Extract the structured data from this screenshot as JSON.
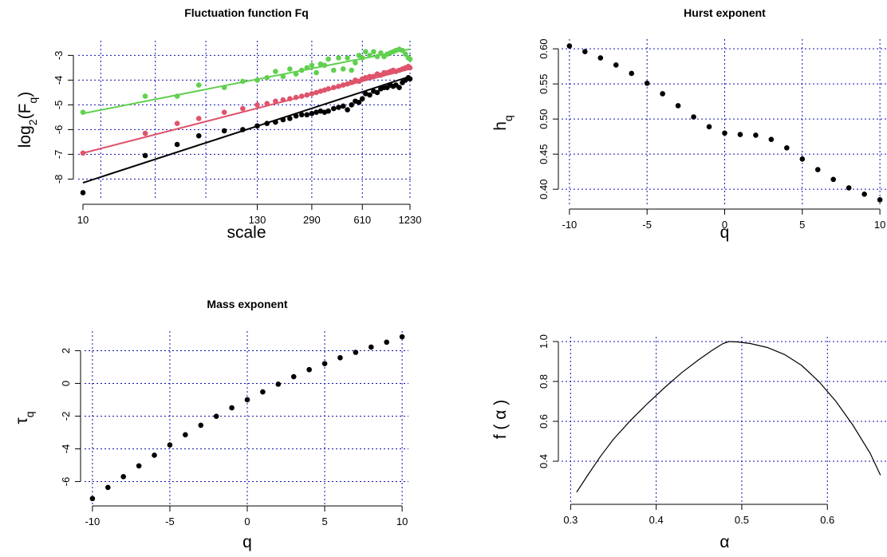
{
  "chart_data": [
    {
      "id": "fq",
      "type": "scatter",
      "title": "Fluctuation function Fq",
      "xlabel": "scale",
      "ylabel": "log2(Fq)",
      "ylabel_parts": {
        "base": "log",
        "base_sub": "2",
        "open": "(F",
        "sub": "q",
        "close": ")"
      },
      "x_scale": "log",
      "xlim": [
        10,
        1230
      ],
      "ylim": [
        -8.6,
        -2.6
      ],
      "x_ticks": [
        10,
        130,
        290,
        610,
        1230
      ],
      "x_tick_labels": [
        "10",
        "130",
        "290",
        "610",
        "1230"
      ],
      "y_ticks": [
        -8,
        -7,
        -6,
        -5,
        -4,
        -3
      ],
      "y_tick_labels": [
        "-8",
        "-7",
        "-6",
        "-5",
        "-4",
        "-3"
      ],
      "x_grid": [
        13,
        29,
        61,
        130,
        290,
        610,
        1230
      ],
      "y_grid": [
        -8,
        -7,
        -6,
        -5,
        -4,
        -3
      ],
      "grid": true,
      "series": [
        {
          "color": "#000000",
          "points": [
            [
              10,
              -8.55
            ],
            [
              25,
              -7.05
            ],
            [
              40,
              -6.6
            ],
            [
              55,
              -6.25
            ],
            [
              80,
              -6.05
            ],
            [
              105,
              -6.0
            ],
            [
              130,
              -5.85
            ],
            [
              150,
              -5.75
            ],
            [
              170,
              -5.7
            ],
            [
              190,
              -5.6
            ],
            [
              210,
              -5.55
            ],
            [
              230,
              -5.45
            ],
            [
              250,
              -5.4
            ],
            [
              270,
              -5.4
            ],
            [
              290,
              -5.35
            ],
            [
              310,
              -5.3
            ],
            [
              330,
              -5.25
            ],
            [
              350,
              -5.3
            ],
            [
              370,
              -5.25
            ],
            [
              400,
              -5.15
            ],
            [
              430,
              -5.1
            ],
            [
              460,
              -5.05
            ],
            [
              490,
              -5.2
            ],
            [
              520,
              -5.0
            ],
            [
              550,
              -4.85
            ],
            [
              580,
              -4.9
            ],
            [
              610,
              -4.75
            ],
            [
              640,
              -4.55
            ],
            [
              680,
              -4.6
            ],
            [
              720,
              -4.45
            ],
            [
              760,
              -4.5
            ],
            [
              800,
              -4.35
            ],
            [
              840,
              -4.3
            ],
            [
              880,
              -4.3
            ],
            [
              920,
              -4.2
            ],
            [
              960,
              -4.25
            ],
            [
              1000,
              -4.2
            ],
            [
              1050,
              -4.3
            ],
            [
              1100,
              -4.1
            ],
            [
              1150,
              -4.0
            ],
            [
              1200,
              -3.9
            ],
            [
              1230,
              -3.95
            ]
          ],
          "fit": [
            [
              10,
              -8.15
            ],
            [
              1230,
              -3.85
            ]
          ]
        },
        {
          "color": "#df536b",
          "points": [
            [
              10,
              -6.95
            ],
            [
              25,
              -6.15
            ],
            [
              40,
              -5.75
            ],
            [
              55,
              -5.55
            ],
            [
              80,
              -5.3
            ],
            [
              105,
              -5.15
            ],
            [
              130,
              -5.0
            ],
            [
              150,
              -4.95
            ],
            [
              170,
              -4.85
            ],
            [
              190,
              -4.8
            ],
            [
              210,
              -4.75
            ],
            [
              230,
              -4.7
            ],
            [
              250,
              -4.65
            ],
            [
              270,
              -4.6
            ],
            [
              290,
              -4.55
            ],
            [
              310,
              -4.5
            ],
            [
              330,
              -4.45
            ],
            [
              350,
              -4.4
            ],
            [
              370,
              -4.35
            ],
            [
              400,
              -4.3
            ],
            [
              430,
              -4.25
            ],
            [
              460,
              -4.2
            ],
            [
              490,
              -4.15
            ],
            [
              520,
              -4.1
            ],
            [
              550,
              -4.0
            ],
            [
              580,
              -4.05
            ],
            [
              610,
              -3.95
            ],
            [
              640,
              -3.9
            ],
            [
              680,
              -3.85
            ],
            [
              720,
              -3.85
            ],
            [
              760,
              -3.75
            ],
            [
              800,
              -3.8
            ],
            [
              840,
              -3.7
            ],
            [
              880,
              -3.7
            ],
            [
              920,
              -3.65
            ],
            [
              960,
              -3.6
            ],
            [
              1000,
              -3.65
            ],
            [
              1050,
              -3.6
            ],
            [
              1100,
              -3.55
            ],
            [
              1150,
              -3.5
            ],
            [
              1200,
              -3.45
            ],
            [
              1230,
              -3.5
            ]
          ],
          "fit": [
            [
              10,
              -6.95
            ],
            [
              1230,
              -3.55
            ]
          ]
        },
        {
          "color": "#61d04f",
          "points": [
            [
              10,
              -5.3
            ],
            [
              25,
              -4.65
            ],
            [
              40,
              -4.65
            ],
            [
              55,
              -4.2
            ],
            [
              80,
              -4.3
            ],
            [
              105,
              -4.05
            ],
            [
              130,
              -4.0
            ],
            [
              150,
              -3.9
            ],
            [
              170,
              -3.65
            ],
            [
              190,
              -3.85
            ],
            [
              210,
              -3.55
            ],
            [
              230,
              -3.75
            ],
            [
              250,
              -3.6
            ],
            [
              270,
              -3.5
            ],
            [
              290,
              -3.4
            ],
            [
              310,
              -3.7
            ],
            [
              330,
              -3.35
            ],
            [
              350,
              -3.4
            ],
            [
              370,
              -3.15
            ],
            [
              400,
              -3.6
            ],
            [
              430,
              -3.1
            ],
            [
              460,
              -3.55
            ],
            [
              490,
              -3.1
            ],
            [
              520,
              -3.6
            ],
            [
              550,
              -3.3
            ],
            [
              580,
              -3.0
            ],
            [
              610,
              -3.1
            ],
            [
              640,
              -2.85
            ],
            [
              680,
              -3.0
            ],
            [
              720,
              -2.85
            ],
            [
              760,
              -3.05
            ],
            [
              800,
              -2.9
            ],
            [
              840,
              -3.05
            ],
            [
              880,
              -2.95
            ],
            [
              920,
              -2.9
            ],
            [
              960,
              -2.85
            ],
            [
              1000,
              -2.8
            ],
            [
              1050,
              -2.75
            ],
            [
              1100,
              -2.8
            ],
            [
              1150,
              -2.95
            ],
            [
              1200,
              -3.1
            ],
            [
              1230,
              -3.15
            ]
          ],
          "fit": [
            [
              10,
              -5.35
            ],
            [
              1230,
              -2.75
            ]
          ]
        }
      ]
    },
    {
      "id": "hurst",
      "type": "scatter",
      "title": "Hurst exponent",
      "xlabel": "q",
      "ylabel": "hq",
      "ylabel_parts": {
        "base": "h",
        "sub": "q"
      },
      "xlim": [
        -10.2,
        10.2
      ],
      "ylim": [
        0.382,
        0.607
      ],
      "x_ticks": [
        -10,
        -5,
        0,
        5,
        10
      ],
      "x_tick_labels": [
        "-10",
        "-5",
        "0",
        "5",
        "10"
      ],
      "y_ticks": [
        0.4,
        0.45,
        0.5,
        0.55,
        0.6
      ],
      "y_tick_labels": [
        "0.40",
        "0.45",
        "0.50",
        "0.55",
        "0.60"
      ],
      "x_grid": [
        -10,
        -5,
        0,
        5,
        10
      ],
      "y_grid": [
        0.4,
        0.45,
        0.5,
        0.55,
        0.6
      ],
      "grid": true,
      "series": [
        {
          "color": "#000000",
          "points": [
            [
              -10,
              0.604
            ],
            [
              -9,
              0.596
            ],
            [
              -8,
              0.587
            ],
            [
              -7,
              0.577
            ],
            [
              -6,
              0.565
            ],
            [
              -5,
              0.551
            ],
            [
              -4,
              0.536
            ],
            [
              -3,
              0.519
            ],
            [
              -2,
              0.503
            ],
            [
              -1,
              0.489
            ],
            [
              0,
              0.48
            ],
            [
              1,
              0.478
            ],
            [
              2,
              0.477
            ],
            [
              3,
              0.471
            ],
            [
              4,
              0.459
            ],
            [
              5,
              0.443
            ],
            [
              6,
              0.428
            ],
            [
              7,
              0.414
            ],
            [
              8,
              0.402
            ],
            [
              9,
              0.393
            ],
            [
              10,
              0.385
            ]
          ]
        }
      ]
    },
    {
      "id": "mass",
      "type": "scatter",
      "title": "Mass exponent",
      "xlabel": "q",
      "ylabel": "τq",
      "ylabel_parts": {
        "base": "τ",
        "sub": "q"
      },
      "xlim": [
        -10.2,
        10.2
      ],
      "ylim": [
        -7.1,
        2.9
      ],
      "x_ticks": [
        -10,
        -5,
        0,
        5,
        10
      ],
      "x_tick_labels": [
        "-10",
        "-5",
        "0",
        "5",
        "10"
      ],
      "y_ticks": [
        -6,
        -4,
        -2,
        0,
        2
      ],
      "y_tick_labels": [
        "-6",
        "-4",
        "-2",
        "0",
        "2"
      ],
      "x_grid": [
        -10,
        -5,
        0,
        5,
        10
      ],
      "y_grid": [
        -6,
        -4,
        -2,
        0,
        2
      ],
      "grid": true,
      "series": [
        {
          "color": "#000000",
          "points": [
            [
              -10,
              -7.04
            ],
            [
              -9,
              -6.36
            ],
            [
              -8,
              -5.7
            ],
            [
              -7,
              -5.04
            ],
            [
              -6,
              -4.39
            ],
            [
              -5,
              -3.76
            ],
            [
              -4,
              -3.14
            ],
            [
              -3,
              -2.56
            ],
            [
              -2,
              -2.01
            ],
            [
              -1,
              -1.49
            ],
            [
              0,
              -1.0
            ],
            [
              1,
              -0.52
            ],
            [
              2,
              -0.05
            ],
            [
              3,
              0.41
            ],
            [
              4,
              0.84
            ],
            [
              5,
              1.21
            ],
            [
              6,
              1.57
            ],
            [
              7,
              1.9
            ],
            [
              8,
              2.22
            ],
            [
              9,
              2.52
            ],
            [
              10,
              2.85
            ]
          ]
        }
      ]
    },
    {
      "id": "spectrum",
      "type": "line",
      "title": "",
      "xlabel": "α",
      "ylabel": "f ( α )",
      "xlim": [
        0.295,
        0.665
      ],
      "ylim": [
        0.22,
        1.0
      ],
      "x_ticks": [
        0.3,
        0.4,
        0.5,
        0.6
      ],
      "x_tick_labels": [
        "0.3",
        "0.4",
        "0.5",
        "0.6"
      ],
      "y_ticks": [
        0.4,
        0.6,
        0.8,
        1.0
      ],
      "y_tick_labels": [
        "0.4",
        "0.6",
        "0.8",
        "1.0"
      ],
      "x_grid": [
        0.3,
        0.4,
        0.5,
        0.6
      ],
      "y_grid": [
        0.4,
        0.6,
        0.8,
        1.0
      ],
      "grid": true,
      "series": [
        {
          "color": "#000000",
          "points": [
            [
              0.307,
              0.245
            ],
            [
              0.32,
              0.33
            ],
            [
              0.335,
              0.425
            ],
            [
              0.35,
              0.51
            ],
            [
              0.37,
              0.605
            ],
            [
              0.39,
              0.69
            ],
            [
              0.41,
              0.77
            ],
            [
              0.43,
              0.845
            ],
            [
              0.45,
              0.91
            ],
            [
              0.465,
              0.955
            ],
            [
              0.478,
              0.99
            ],
            [
              0.485,
              1.0
            ],
            [
              0.495,
              0.998
            ],
            [
              0.51,
              0.99
            ],
            [
              0.53,
              0.97
            ],
            [
              0.55,
              0.935
            ],
            [
              0.57,
              0.88
            ],
            [
              0.59,
              0.8
            ],
            [
              0.61,
              0.7
            ],
            [
              0.63,
              0.58
            ],
            [
              0.65,
              0.44
            ],
            [
              0.662,
              0.33
            ]
          ]
        }
      ]
    }
  ]
}
